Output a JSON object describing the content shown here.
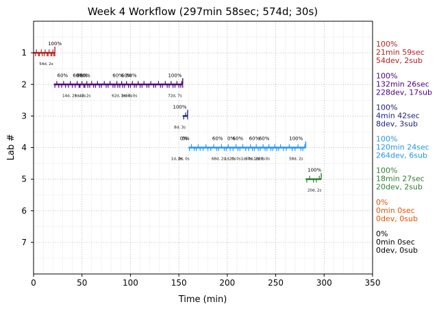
{
  "chart_data": {
    "type": "timeline",
    "title": "Week 4 Workflow (297min 58sec; 574d; 30s)",
    "xlabel": "Time (min)",
    "ylabel": "Lab #",
    "xlim": [
      0,
      350
    ],
    "ylim": [
      8,
      0
    ],
    "x_ticks": [
      0,
      50,
      100,
      150,
      200,
      250,
      300,
      350
    ],
    "y_ticks": [
      1,
      2,
      3,
      4,
      5,
      6,
      7
    ],
    "grid": true,
    "labs": [
      {
        "lab": 1,
        "color": "#b22222",
        "start": 0,
        "end": 22,
        "submissions": [
          2,
          3,
          5,
          6,
          8,
          9,
          11,
          12,
          14,
          15,
          16,
          18,
          19,
          20,
          21,
          22
        ],
        "pct_marks": [
          {
            "x": 22,
            "label": "100%"
          }
        ],
        "seg_labels": [
          {
            "x": 13,
            "label": "54d, 2s"
          }
        ],
        "summary": [
          "100%",
          "21min 59sec",
          "54dev, 2sub"
        ]
      },
      {
        "lab": 2,
        "color": "#4b0082",
        "start": 21,
        "end": 154,
        "submissions": [
          22,
          24,
          26,
          29,
          31,
          33,
          36,
          38,
          40,
          43,
          45,
          47,
          48,
          50,
          52,
          53,
          55,
          56,
          58,
          60,
          62,
          64,
          66,
          68,
          70,
          73,
          75,
          77,
          79,
          82,
          84,
          86,
          87,
          89,
          91,
          92,
          94,
          96,
          98,
          100,
          102,
          104,
          106,
          108,
          110,
          112,
          114,
          117,
          119,
          121,
          124,
          126,
          129,
          131,
          133,
          136,
          138,
          140,
          142,
          144,
          146,
          148,
          150,
          152,
          153,
          154
        ],
        "pct_marks": [
          {
            "x": 30,
            "label": "60%"
          },
          {
            "x": 46,
            "label": "60%"
          },
          {
            "x": 50,
            "label": "60%"
          },
          {
            "x": 53,
            "label": "60%"
          },
          {
            "x": 87,
            "label": "60%"
          },
          {
            "x": 96,
            "label": "60%"
          },
          {
            "x": 101,
            "label": "60%"
          },
          {
            "x": 146,
            "label": "100%"
          }
        ],
        "seg_labels": [
          {
            "x": 37,
            "label": "14d, 2s"
          },
          {
            "x": 48,
            "label": "3d, 2s"
          },
          {
            "x": 53,
            "label": "4d, 2s"
          },
          {
            "x": 88,
            "label": "62d, 2s"
          },
          {
            "x": 96,
            "label": "1d, 0s"
          },
          {
            "x": 101,
            "label": "6d, 0s"
          },
          {
            "x": 146,
            "label": "72d, 7s"
          }
        ],
        "summary": [
          "100%",
          "132min 26sec",
          "228dev, 17sub"
        ]
      },
      {
        "lab": 3,
        "color": "#1a237e",
        "start": 154,
        "end": 159,
        "submissions": [
          155,
          157,
          159
        ],
        "pct_marks": [
          {
            "x": 151,
            "label": "100%"
          }
        ],
        "seg_labels": [
          {
            "x": 151,
            "label": "8d, 3s"
          }
        ],
        "summary": [
          "100%",
          "4min 42sec",
          "8dev, 3sub"
        ]
      },
      {
        "lab": 4,
        "color": "#2196f3",
        "start": 160,
        "end": 281,
        "submissions": [
          161,
          163,
          166,
          168,
          170,
          172,
          175,
          178,
          180,
          183,
          186,
          189,
          191,
          194,
          197,
          199,
          201,
          203,
          206,
          209,
          211,
          213,
          216,
          219,
          222,
          224,
          226,
          228,
          230,
          232,
          234,
          237,
          239,
          241,
          243,
          245,
          247,
          249,
          251,
          253,
          255,
          258,
          261,
          264,
          267,
          270,
          273,
          276,
          278,
          280
        ],
        "pct_marks": [
          {
            "x": 155,
            "label": "0%"
          },
          {
            "x": 157,
            "label": "0%"
          },
          {
            "x": 190,
            "label": "60%"
          },
          {
            "x": 204,
            "label": "0%"
          },
          {
            "x": 211,
            "label": "60%"
          },
          {
            "x": 228,
            "label": "60%"
          },
          {
            "x": 238,
            "label": "60%"
          },
          {
            "x": 271,
            "label": "100%"
          }
        ],
        "seg_labels": [
          {
            "x": 148,
            "label": "1d, 0s"
          },
          {
            "x": 155,
            "label": "2d, 0s"
          },
          {
            "x": 191,
            "label": "68d, 2s"
          },
          {
            "x": 203,
            "label": "1d, 0s"
          },
          {
            "x": 208,
            "label": "2d, 0s"
          },
          {
            "x": 220,
            "label": "1d, 0s"
          },
          {
            "x": 226,
            "label": "67d, 2s"
          },
          {
            "x": 233,
            "label": "1d, 0s"
          },
          {
            "x": 238,
            "label": "8d, 0s"
          },
          {
            "x": 271,
            "label": "58d, 2s"
          }
        ],
        "summary": [
          "100%",
          "120min 24sec",
          "264dev, 6sub"
        ]
      },
      {
        "lab": 5,
        "color": "#2e7d32",
        "start": 281,
        "end": 297,
        "submissions": [
          282,
          285,
          289,
          292,
          295
        ],
        "pct_marks": [
          {
            "x": 290,
            "label": "100%"
          }
        ],
        "seg_labels": [
          {
            "x": 290,
            "label": "20d, 2s"
          }
        ],
        "summary": [
          "100%",
          "18min 27sec",
          "20dev, 2sub"
        ]
      },
      {
        "lab": 6,
        "color": "#e65100",
        "start": null,
        "end": null,
        "submissions": [],
        "pct_marks": [],
        "seg_labels": [],
        "summary": [
          "0%",
          "0min 0sec",
          "0dev, 0sub"
        ]
      },
      {
        "lab": 7,
        "color": "#000000",
        "start": null,
        "end": null,
        "submissions": [],
        "pct_marks": [],
        "seg_labels": [],
        "summary": [
          "0%",
          "0min 0sec",
          "0dev, 0sub"
        ]
      }
    ]
  }
}
